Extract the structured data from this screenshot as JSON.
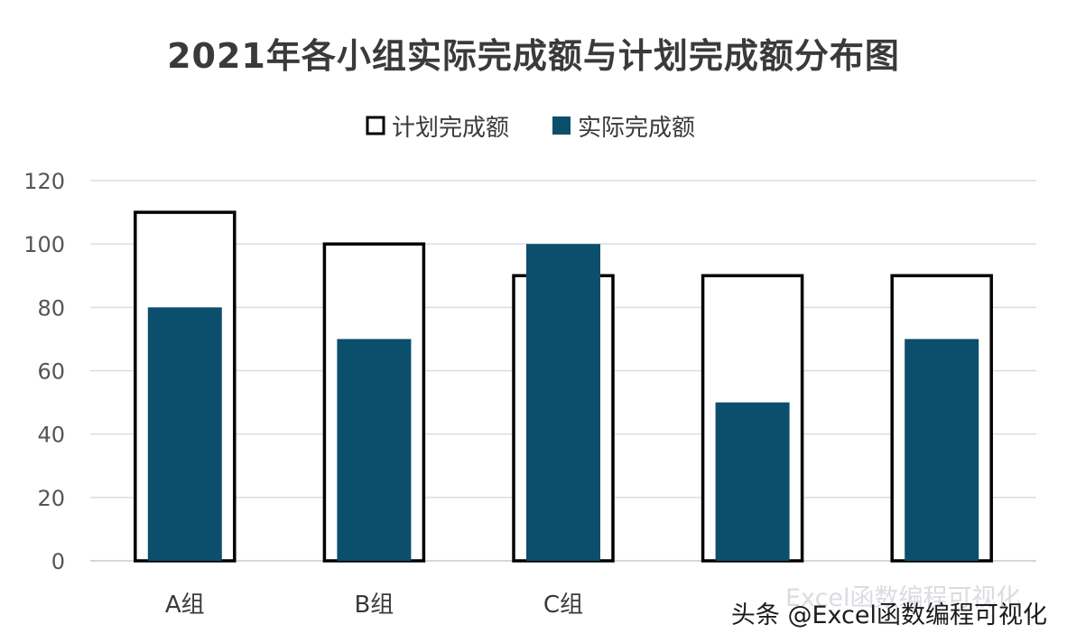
{
  "chart_data": {
    "type": "bar",
    "title": "2021年各小组实际完成额与计划完成额分布图",
    "categories": [
      "A组",
      "B组",
      "C组",
      "",
      ""
    ],
    "series": [
      {
        "name": "计划完成额",
        "values": [
          110,
          100,
          90,
          90,
          90
        ],
        "style": "outline"
      },
      {
        "name": "实际完成额",
        "values": [
          80,
          70,
          100,
          50,
          70
        ],
        "style": "filled"
      }
    ],
    "xlabel": "",
    "ylabel": "",
    "ylim": [
      0,
      120
    ],
    "yticks": [
      0,
      20,
      40,
      60,
      80,
      100,
      120
    ],
    "grid": true,
    "legend": "top-center"
  },
  "watermark": {
    "faint": "Excel函数编程可视化",
    "main": "头条 @Excel函数编程可视化"
  },
  "colors": {
    "actual": "#0b4f6c",
    "plan_stroke": "#000000",
    "grid": "#d6dde5",
    "page": "#ffffff"
  }
}
